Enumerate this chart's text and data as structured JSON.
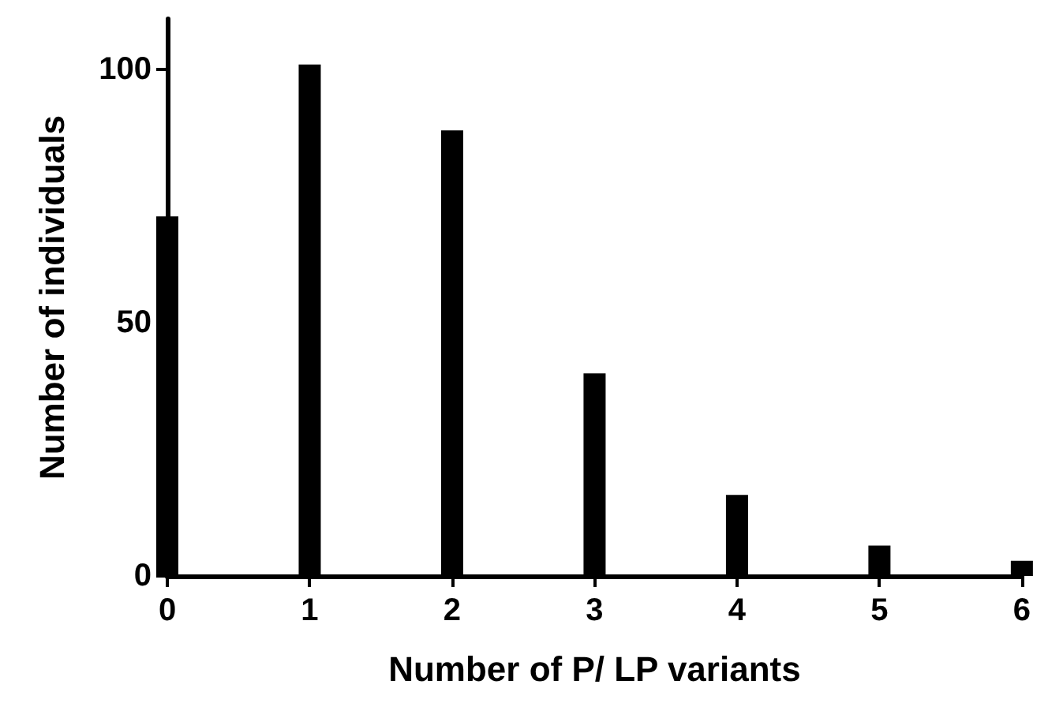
{
  "chart_data": {
    "type": "bar",
    "xlabel": "Number of P/ LP variants",
    "ylabel": "Number of individuals",
    "x": [
      0,
      1,
      2,
      3,
      4,
      5,
      6
    ],
    "values": [
      71,
      101,
      88,
      40,
      16,
      6,
      3
    ],
    "color": "#000000",
    "xlim": [
      0,
      6
    ],
    "xticks": [
      0,
      1,
      2,
      3,
      4,
      5,
      6
    ],
    "ylim": [
      0,
      110
    ],
    "yticks": [
      0,
      50,
      100
    ],
    "grid": false
  }
}
